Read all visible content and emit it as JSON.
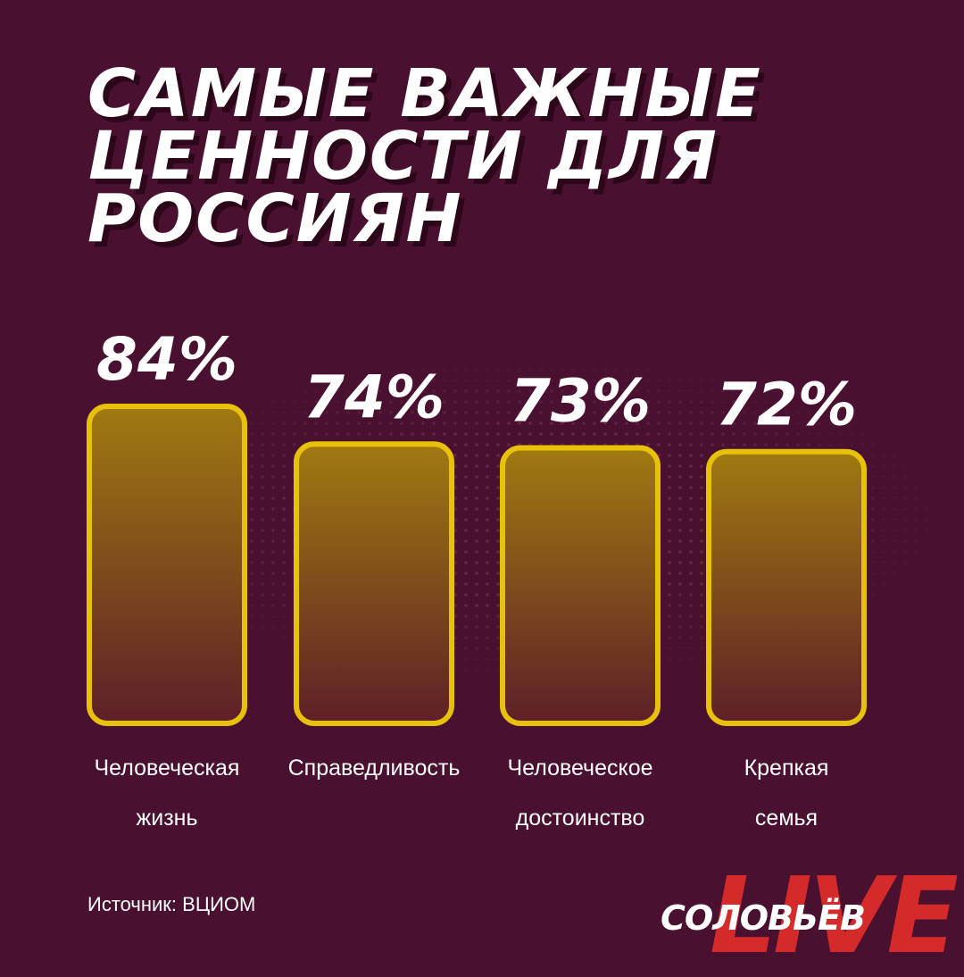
{
  "header": {
    "title": "САМЫЕ ВАЖНЫЕ\nЦЕННОСТИ ДЛЯ\nРОССИЯН"
  },
  "chart_data": {
    "type": "bar",
    "categories": [
      "Человеческая\nжизнь",
      "Справедливость",
      "Человеческое\nдостоинство",
      "Крепкая\nсемья"
    ],
    "values": [
      84,
      74,
      73,
      72
    ],
    "value_labels": [
      "84%",
      "74%",
      "73%",
      "72%"
    ],
    "title": "САМЫЕ ВАЖНЫЕ ЦЕННОСТИ ДЛЯ РОССИЯН",
    "xlabel": "",
    "ylabel": "",
    "grid": false,
    "colors": {
      "bar_border": "#e8c20a",
      "bar_fill_top": "#a07a10",
      "bar_fill_bottom": "#5e1f28",
      "background": "#4a1030"
    }
  },
  "footer": {
    "source": "Источник: ВЦИОМ"
  },
  "logo": {
    "name": "СОЛОВЬЁВ",
    "live": "LIVE"
  }
}
